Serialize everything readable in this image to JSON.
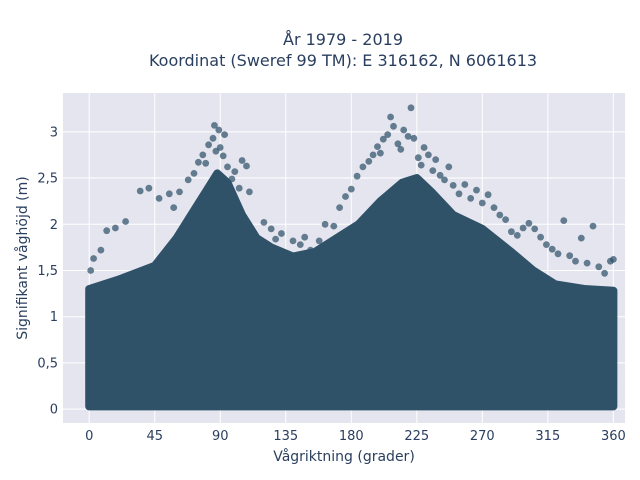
{
  "chart_data": {
    "type": "scatter",
    "title": "År 1979 - 2019",
    "subtitle": "Koordinat (Sweref 99 TM): E 316162, N 6061613",
    "xlabel": "Vågriktning (grader)",
    "ylabel": "Signifikant våghöjd (m)",
    "xlim": [
      -18,
      368
    ],
    "ylim": [
      -0.15,
      3.42
    ],
    "xticks": [
      0,
      45,
      90,
      135,
      180,
      225,
      270,
      315,
      360
    ],
    "xtick_labels": [
      "0",
      "45",
      "90",
      "135",
      "180",
      "225",
      "270",
      "315",
      "360"
    ],
    "yticks": [
      0,
      0.5,
      1,
      1.5,
      2,
      2.5,
      3
    ],
    "ytick_labels": [
      "0",
      "0,5",
      "1",
      "1,5",
      "2",
      "2,5",
      "3"
    ],
    "grid": true,
    "marker_color": "#2f5269",
    "plot_background": "#e5e5ef",
    "points": [
      {
        "x": 62,
        "y": 2.35
      },
      {
        "x": 68,
        "y": 2.48
      },
      {
        "x": 72,
        "y": 2.55
      },
      {
        "x": 75,
        "y": 2.67
      },
      {
        "x": 78,
        "y": 2.75
      },
      {
        "x": 80,
        "y": 2.66
      },
      {
        "x": 82,
        "y": 2.86
      },
      {
        "x": 85,
        "y": 2.93
      },
      {
        "x": 86,
        "y": 3.07
      },
      {
        "x": 87,
        "y": 2.79
      },
      {
        "x": 89,
        "y": 3.02
      },
      {
        "x": 90,
        "y": 2.83
      },
      {
        "x": 92,
        "y": 2.74
      },
      {
        "x": 93,
        "y": 2.97
      },
      {
        "x": 95,
        "y": 2.62
      },
      {
        "x": 98,
        "y": 2.49
      },
      {
        "x": 100,
        "y": 2.57
      },
      {
        "x": 103,
        "y": 2.39
      },
      {
        "x": 105,
        "y": 2.69
      },
      {
        "x": 108,
        "y": 2.63
      },
      {
        "x": 110,
        "y": 2.35
      },
      {
        "x": 41,
        "y": 2.39
      },
      {
        "x": 35,
        "y": 2.36
      },
      {
        "x": 48,
        "y": 2.28
      },
      {
        "x": 55,
        "y": 2.33
      },
      {
        "x": 58,
        "y": 2.18
      },
      {
        "x": 25,
        "y": 2.03
      },
      {
        "x": 18,
        "y": 1.96
      },
      {
        "x": 12,
        "y": 1.93
      },
      {
        "x": 8,
        "y": 1.72
      },
      {
        "x": 3,
        "y": 1.63
      },
      {
        "x": 1,
        "y": 1.5
      },
      {
        "x": 120,
        "y": 2.02
      },
      {
        "x": 125,
        "y": 1.95
      },
      {
        "x": 128,
        "y": 1.84
      },
      {
        "x": 132,
        "y": 1.9
      },
      {
        "x": 140,
        "y": 1.82
      },
      {
        "x": 145,
        "y": 1.78
      },
      {
        "x": 148,
        "y": 1.86
      },
      {
        "x": 152,
        "y": 1.72
      },
      {
        "x": 158,
        "y": 1.82
      },
      {
        "x": 162,
        "y": 2.0
      },
      {
        "x": 168,
        "y": 1.98
      },
      {
        "x": 172,
        "y": 2.18
      },
      {
        "x": 176,
        "y": 2.3
      },
      {
        "x": 180,
        "y": 2.38
      },
      {
        "x": 184,
        "y": 2.52
      },
      {
        "x": 188,
        "y": 2.62
      },
      {
        "x": 192,
        "y": 2.68
      },
      {
        "x": 195,
        "y": 2.75
      },
      {
        "x": 198,
        "y": 2.84
      },
      {
        "x": 200,
        "y": 2.77
      },
      {
        "x": 202,
        "y": 2.92
      },
      {
        "x": 205,
        "y": 2.97
      },
      {
        "x": 207,
        "y": 3.16
      },
      {
        "x": 209,
        "y": 3.06
      },
      {
        "x": 212,
        "y": 2.87
      },
      {
        "x": 214,
        "y": 2.81
      },
      {
        "x": 216,
        "y": 3.02
      },
      {
        "x": 219,
        "y": 2.95
      },
      {
        "x": 221,
        "y": 3.26
      },
      {
        "x": 223,
        "y": 2.93
      },
      {
        "x": 226,
        "y": 2.72
      },
      {
        "x": 228,
        "y": 2.64
      },
      {
        "x": 230,
        "y": 2.83
      },
      {
        "x": 233,
        "y": 2.75
      },
      {
        "x": 236,
        "y": 2.58
      },
      {
        "x": 238,
        "y": 2.7
      },
      {
        "x": 241,
        "y": 2.53
      },
      {
        "x": 244,
        "y": 2.48
      },
      {
        "x": 247,
        "y": 2.62
      },
      {
        "x": 250,
        "y": 2.42
      },
      {
        "x": 254,
        "y": 2.33
      },
      {
        "x": 258,
        "y": 2.43
      },
      {
        "x": 262,
        "y": 2.28
      },
      {
        "x": 266,
        "y": 2.37
      },
      {
        "x": 270,
        "y": 2.23
      },
      {
        "x": 274,
        "y": 2.32
      },
      {
        "x": 278,
        "y": 2.18
      },
      {
        "x": 282,
        "y": 2.1
      },
      {
        "x": 286,
        "y": 2.05
      },
      {
        "x": 290,
        "y": 1.92
      },
      {
        "x": 294,
        "y": 1.88
      },
      {
        "x": 298,
        "y": 1.96
      },
      {
        "x": 302,
        "y": 2.01
      },
      {
        "x": 306,
        "y": 1.95
      },
      {
        "x": 310,
        "y": 1.86
      },
      {
        "x": 314,
        "y": 1.78
      },
      {
        "x": 318,
        "y": 1.73
      },
      {
        "x": 322,
        "y": 1.68
      },
      {
        "x": 326,
        "y": 2.04
      },
      {
        "x": 330,
        "y": 1.66
      },
      {
        "x": 334,
        "y": 1.6
      },
      {
        "x": 338,
        "y": 1.85
      },
      {
        "x": 342,
        "y": 1.58
      },
      {
        "x": 346,
        "y": 1.98
      },
      {
        "x": 350,
        "y": 1.54
      },
      {
        "x": 354,
        "y": 1.47
      },
      {
        "x": 358,
        "y": 1.6
      },
      {
        "x": 360,
        "y": 1.62
      }
    ]
  }
}
